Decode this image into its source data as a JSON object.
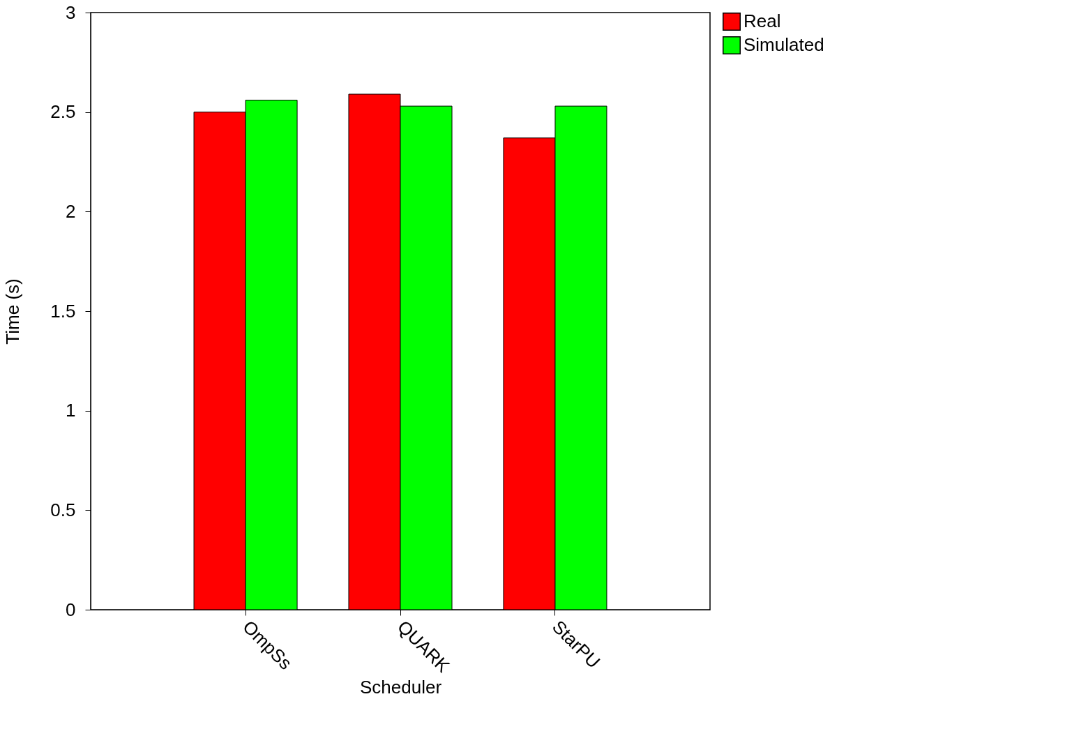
{
  "chart_data": {
    "type": "bar",
    "xlabel": "Scheduler",
    "ylabel": "Time (s)",
    "categories": [
      "OmpSs",
      "QUARK",
      "StarPU"
    ],
    "series": [
      {
        "name": "Real",
        "color": "#ff0000",
        "values": [
          2.5,
          2.59,
          2.37
        ]
      },
      {
        "name": "Simulated",
        "color": "#00ff00",
        "values": [
          2.56,
          2.53,
          2.53
        ]
      }
    ],
    "ylim": [
      0,
      3
    ],
    "yticks": [
      0,
      0.5,
      1,
      1.5,
      2,
      2.5,
      3
    ],
    "grid": false,
    "legend": "right"
  }
}
